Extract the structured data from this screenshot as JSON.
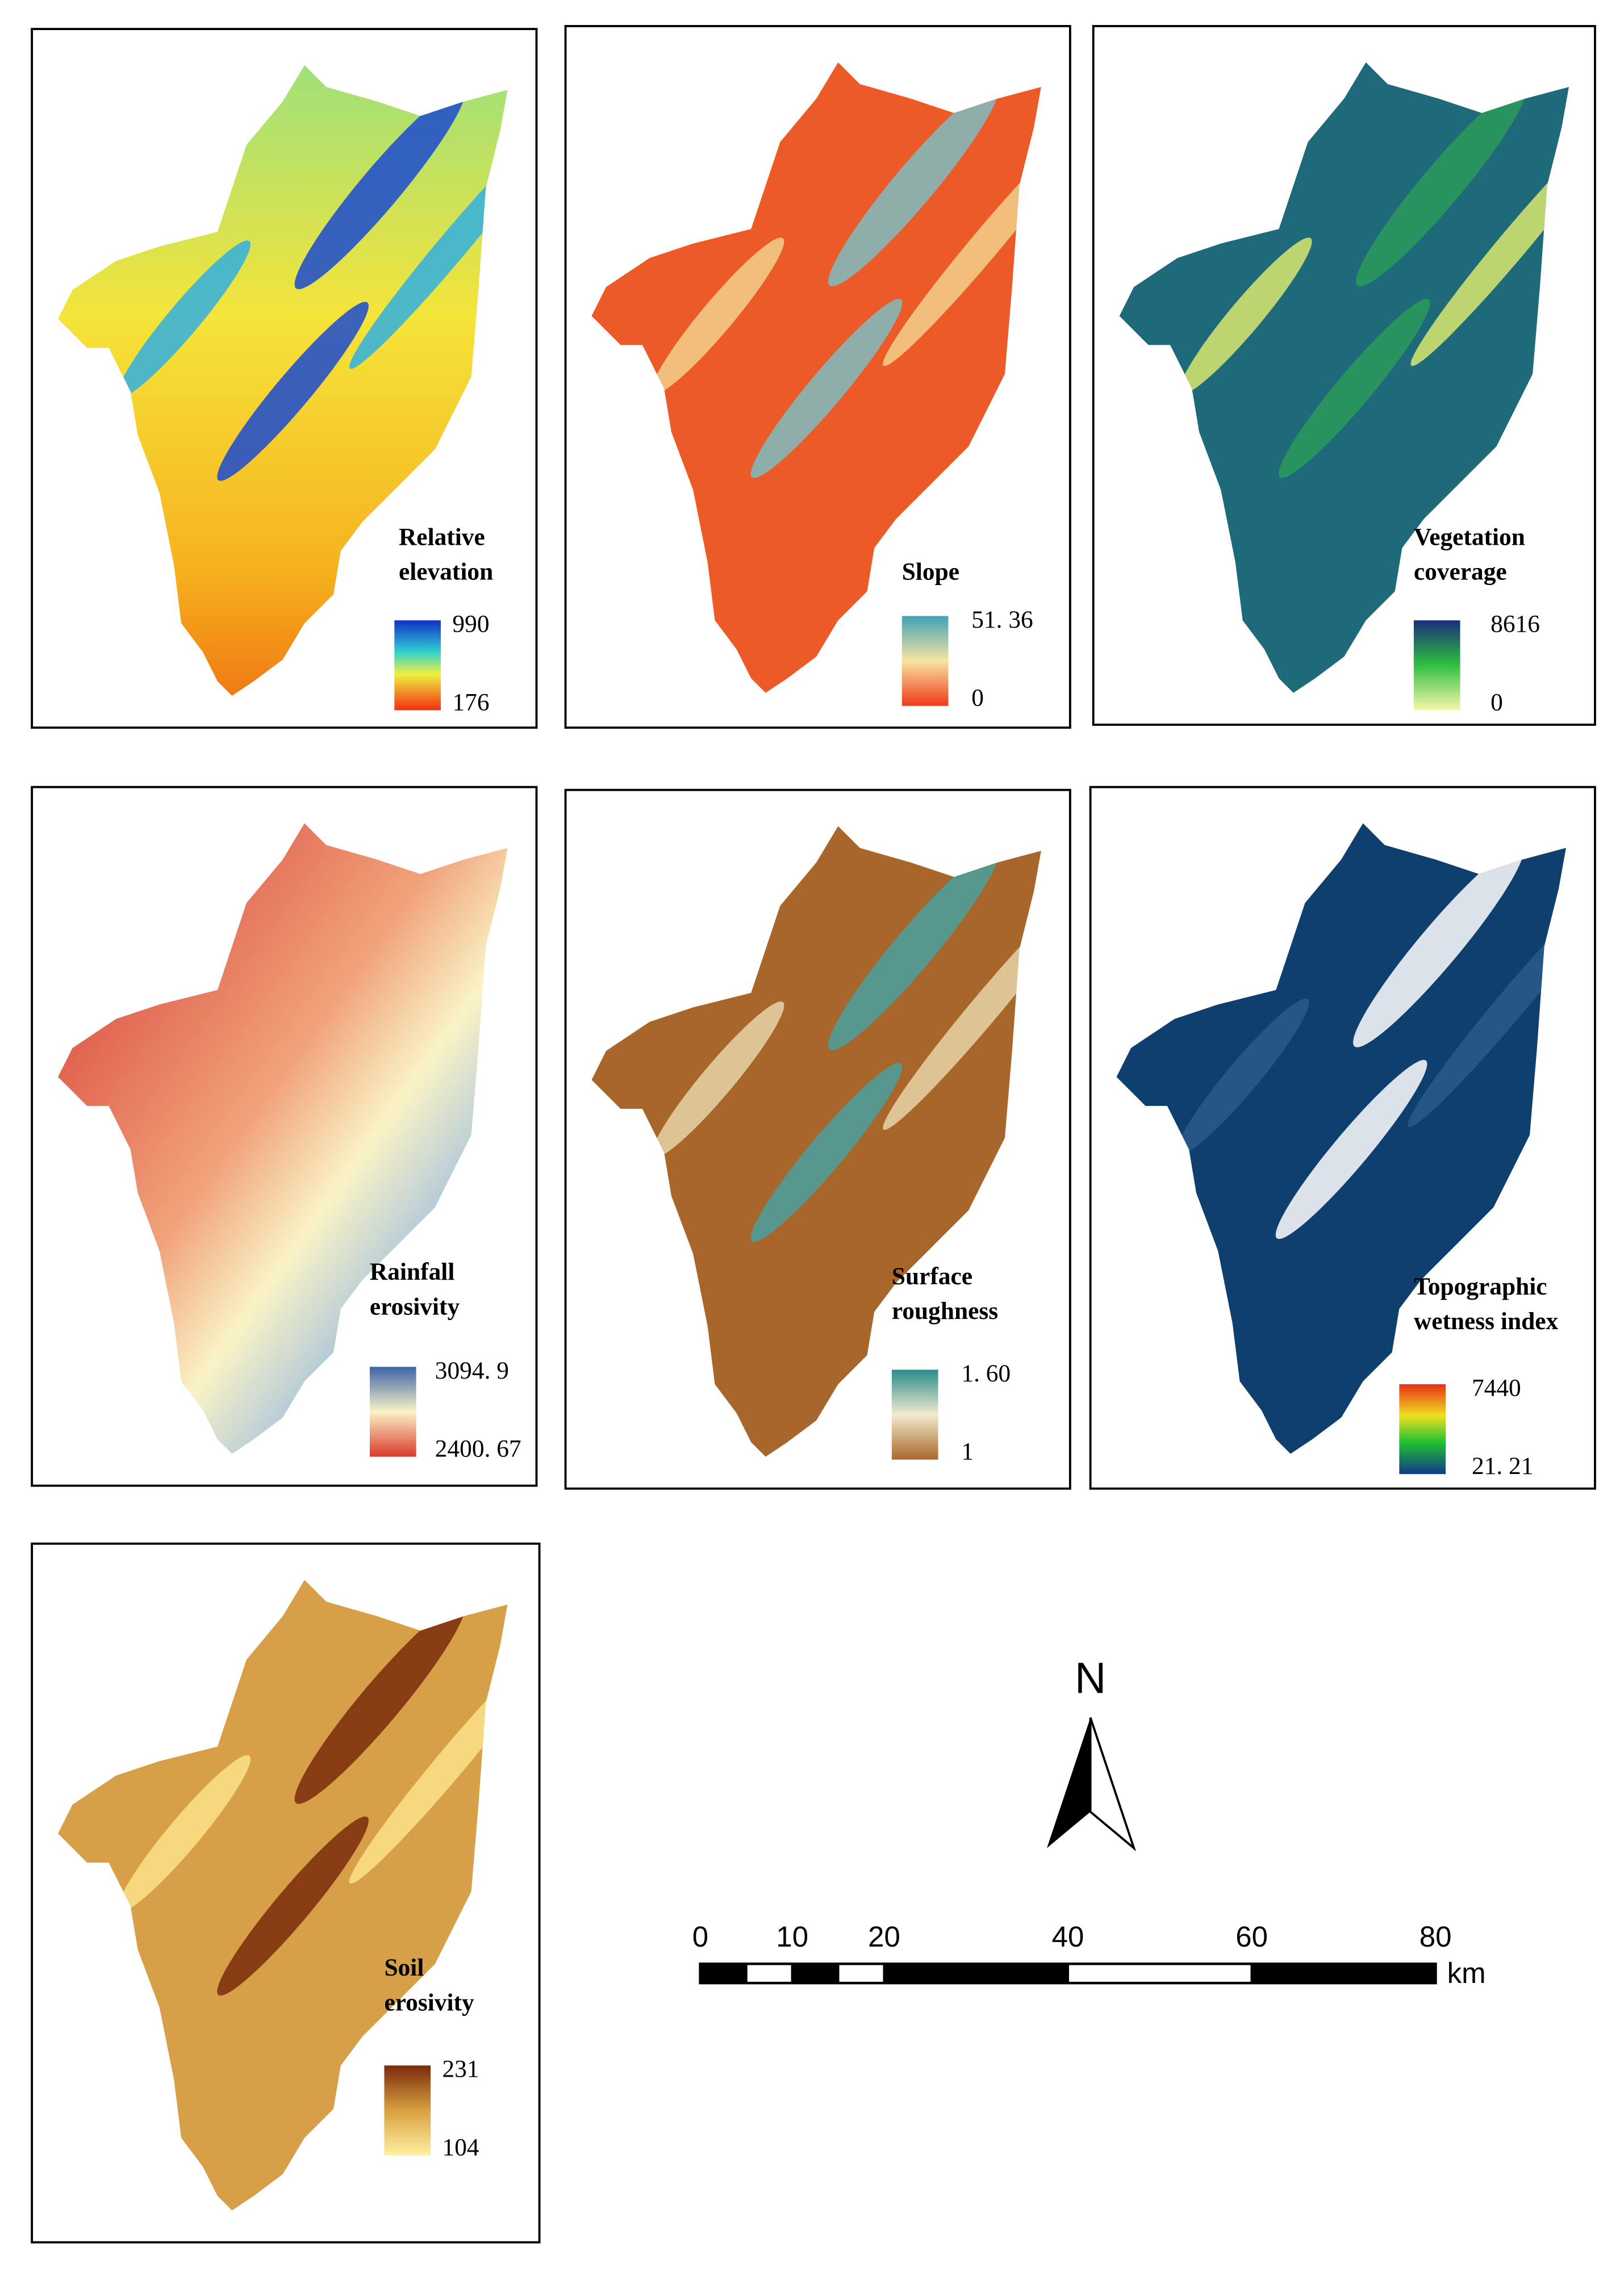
{
  "panels": [
    {
      "title": [
        "Relative",
        "elevation"
      ],
      "legend": {
        "max": "990",
        "min": "176"
      }
    },
    {
      "title": [
        "Slope"
      ],
      "legend": {
        "max": "51. 36",
        "min": "0"
      }
    },
    {
      "title": [
        "Vegetation",
        "coverage"
      ],
      "legend": {
        "max": "8616",
        "min": "0"
      }
    },
    {
      "title": [
        "Rainfall",
        "erosivity"
      ],
      "legend": {
        "max": "3094. 9",
        "min": "2400. 67"
      }
    },
    {
      "title": [
        "Surface",
        "roughness"
      ],
      "legend": {
        "max": "1. 60",
        "min": "1"
      }
    },
    {
      "title": [
        "Topographic",
        "wetness index"
      ],
      "legend": {
        "max": "7440",
        "min": "21. 21"
      }
    },
    {
      "title": [
        "Soil",
        "erosivity"
      ],
      "legend": {
        "max": "231",
        "min": "104"
      }
    }
  ],
  "north_arrow": "N",
  "scale_bar": {
    "ticks": [
      0,
      10,
      20,
      40,
      60,
      80
    ],
    "unit": "km"
  }
}
